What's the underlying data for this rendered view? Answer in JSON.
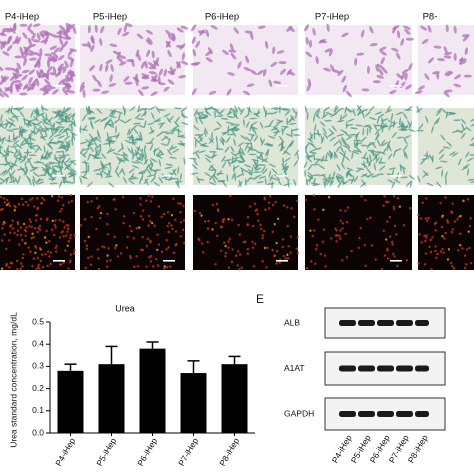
{
  "figure": {
    "column_labels": [
      "P4-iHep",
      "P5-iHep",
      "P6-iHep",
      "P7-iHep",
      "P8-"
    ]
  },
  "chart_data": {
    "type": "bar",
    "title": "Urea",
    "y_label": "Urea standard concentration, mg/dL",
    "categories": [
      "P4-iHep",
      "P5-iHep",
      "P6-iHep",
      "P7-iHep",
      "P8-iHep"
    ],
    "values": [
      0.28,
      0.31,
      0.38,
      0.27,
      0.31
    ],
    "errors": [
      0.03,
      0.08,
      0.03,
      0.055,
      0.035
    ],
    "color": "#000000",
    "ylim": [
      0,
      0.5
    ],
    "yticks": [
      {
        "value": 0,
        "label": "0.0"
      },
      0.1,
      0.2,
      0.3,
      0.4,
      0.5
    ]
  },
  "blot": {
    "panel_label": "E",
    "rows": [
      "ALB",
      "A1AT",
      "GAPDH"
    ],
    "columns": [
      "P4-iHep",
      "P5-iHep",
      "P6-iHep",
      "P7-iHep",
      "P8-iHep"
    ]
  }
}
